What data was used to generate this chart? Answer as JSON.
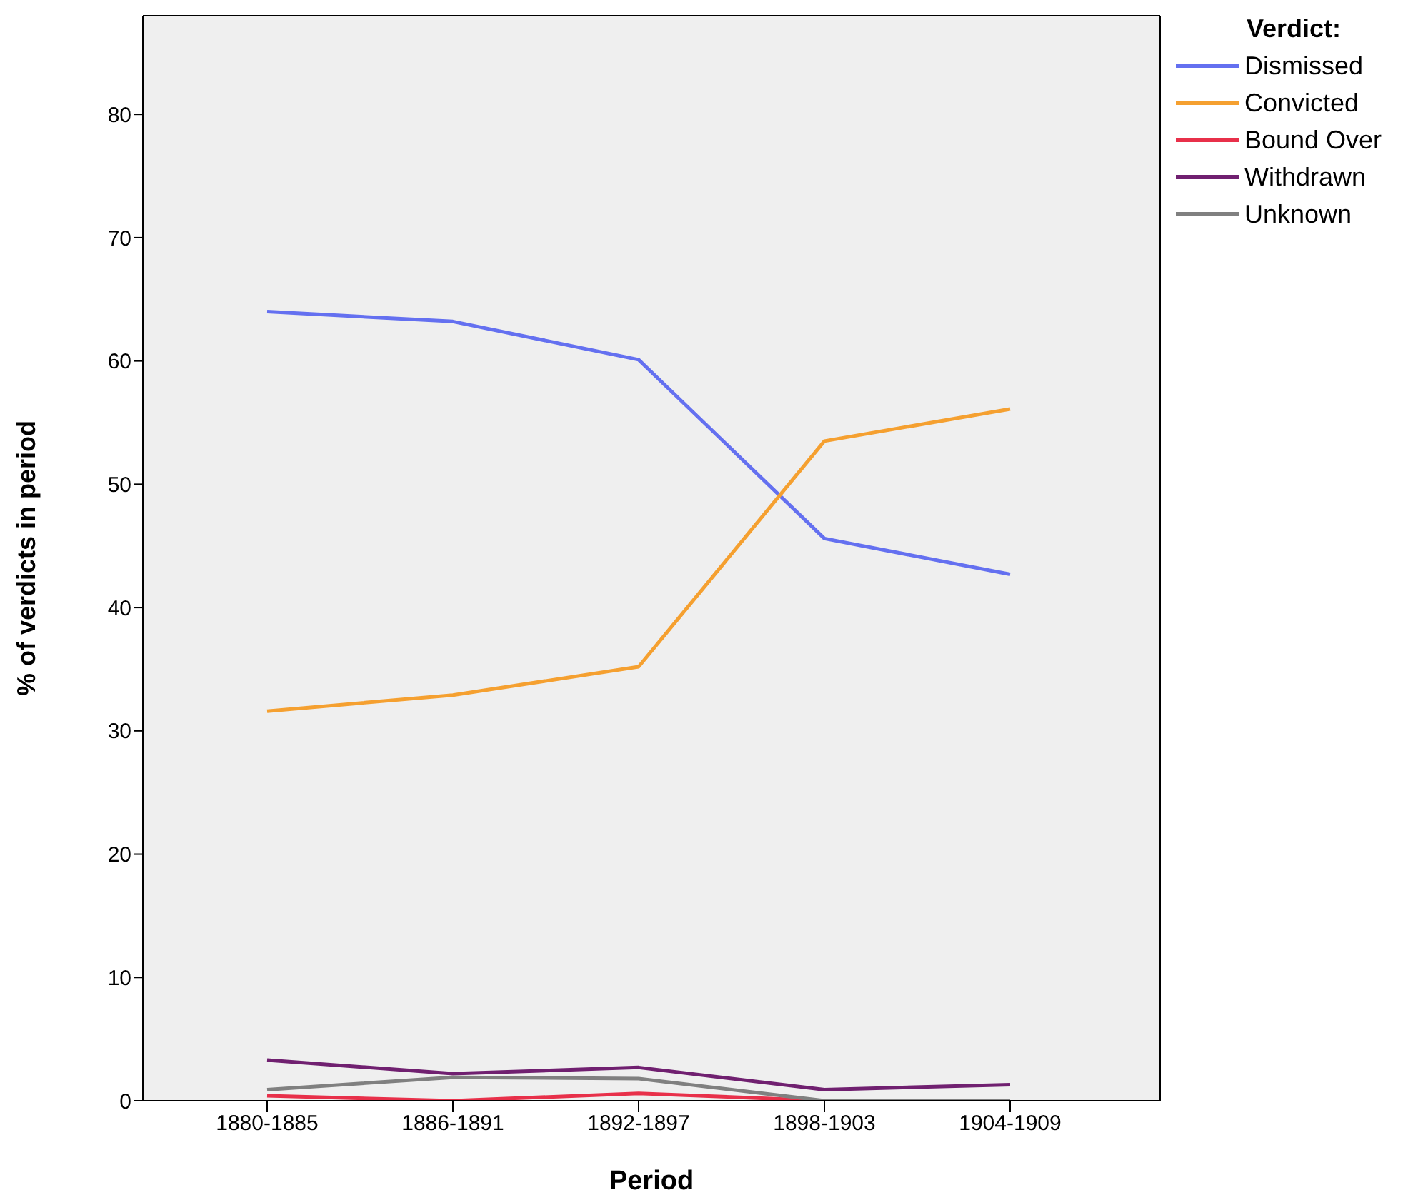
{
  "chart_data": {
    "type": "line",
    "xlabel": "Period",
    "ylabel": "% of verdicts in period",
    "legend_title": "Verdict:",
    "legend": "top right",
    "grid": false,
    "marker": "none",
    "line_style": "solid",
    "categories": [
      "1880-1885",
      "1886-1891",
      "1892-1897",
      "1898-1903",
      "1904-1909"
    ],
    "ylim": [
      0,
      88
    ],
    "yticks": [
      0,
      10,
      20,
      30,
      40,
      50,
      60,
      70,
      80
    ],
    "series": [
      {
        "name": "Dismissed",
        "color": "#6470f0",
        "values": [
          64.0,
          63.2,
          60.1,
          45.6,
          42.7
        ]
      },
      {
        "name": "Convicted",
        "color": "#f5a030",
        "values": [
          31.6,
          32.9,
          35.2,
          53.5,
          56.1
        ]
      },
      {
        "name": "Bound Over",
        "color": "#e8304a",
        "values": [
          0.4,
          0,
          0.6,
          0,
          0
        ]
      },
      {
        "name": "Withdrawn",
        "color": "#702070",
        "values": [
          3.3,
          2.2,
          2.7,
          0.9,
          1.3
        ]
      },
      {
        "name": "Unknown",
        "color": "#808080",
        "values": [
          0.9,
          1.9,
          1.8,
          0,
          0
        ]
      }
    ]
  }
}
